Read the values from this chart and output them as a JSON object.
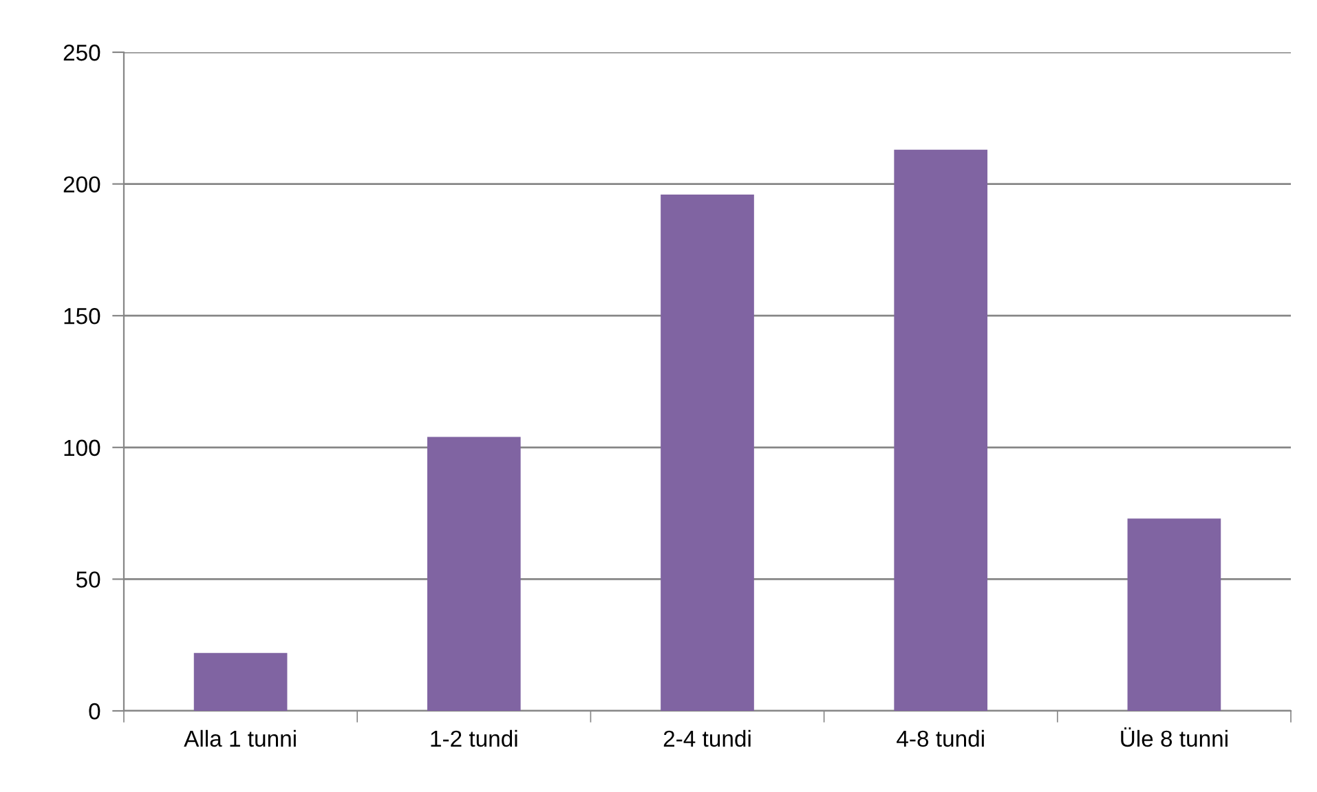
{
  "chart_data": {
    "type": "bar",
    "categories": [
      "Alla 1 tunni",
      "1-2 tundi",
      "2-4 tundi",
      "4-8 tundi",
      "Üle 8 tunni"
    ],
    "values": [
      22,
      104,
      196,
      213,
      73
    ],
    "color": "#8064a2",
    "ylim": [
      0,
      250
    ],
    "yticks": [
      0,
      50,
      100,
      150,
      200,
      250
    ],
    "grid": "y",
    "legend": false
  }
}
